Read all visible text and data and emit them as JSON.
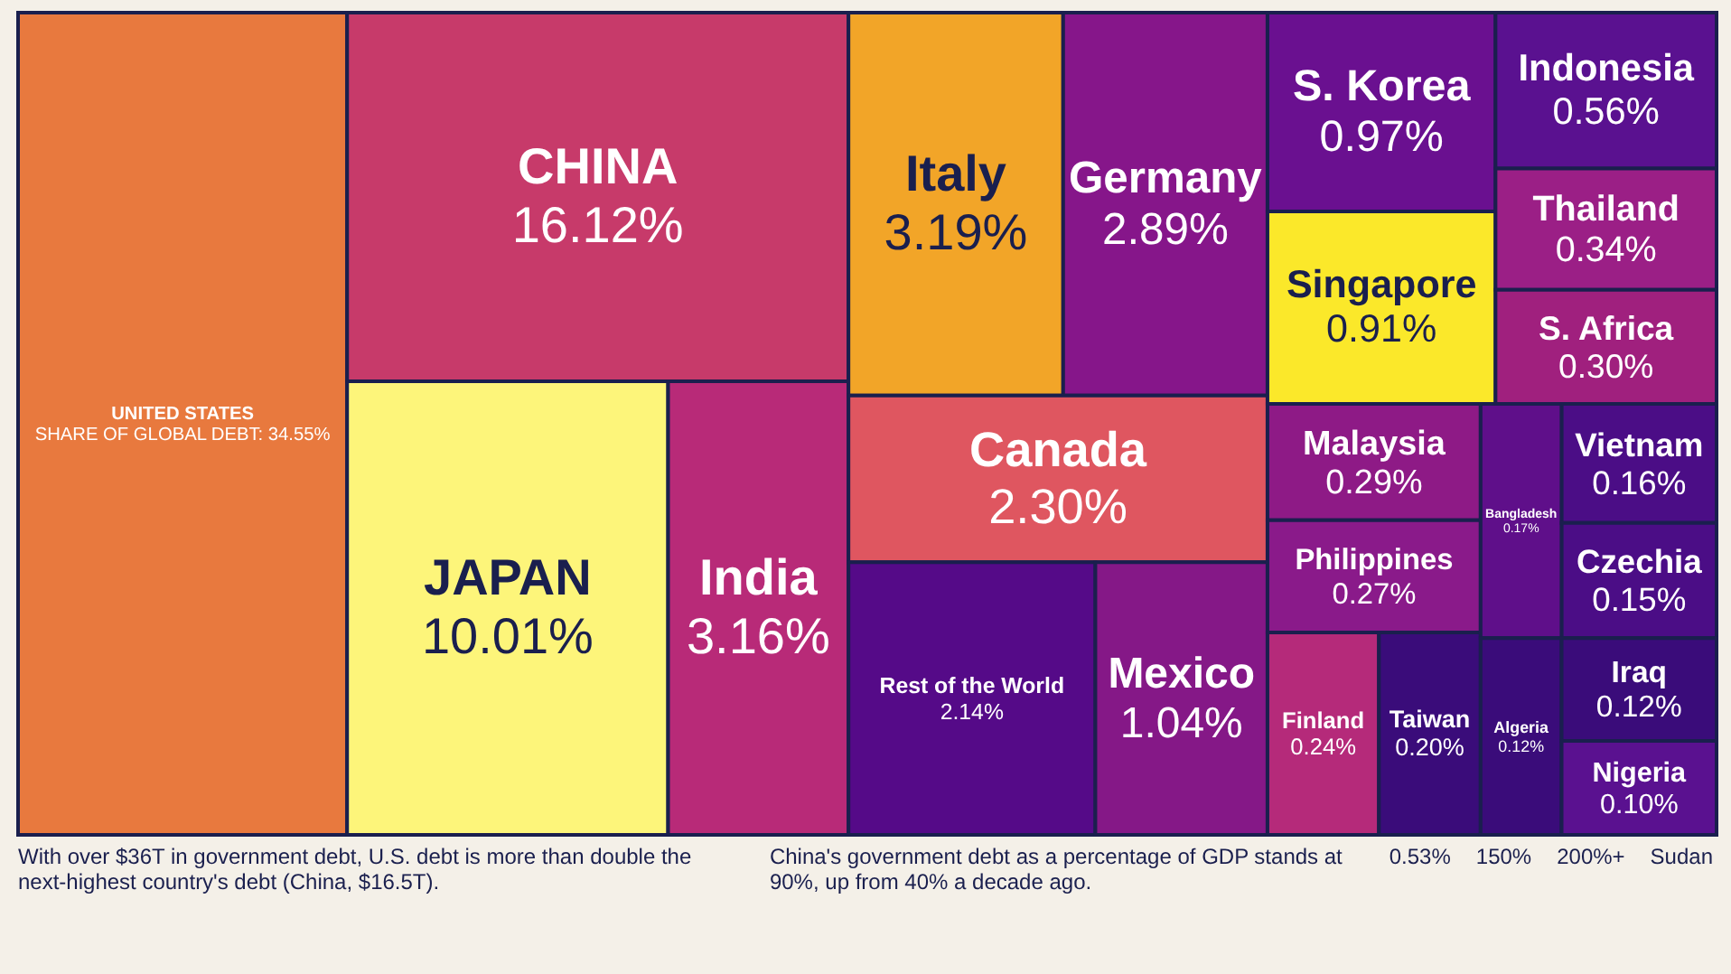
{
  "chart_data": {
    "type": "other",
    "categories": [
      "UNITED STATES",
      "CHINA",
      "JAPAN",
      "India",
      "Italy",
      "Germany",
      "Canada",
      "Rest of the World",
      "Mexico",
      "S. Korea",
      "Singapore",
      "Indonesia",
      "Thailand",
      "S. Africa",
      "Malaysia",
      "Philippines",
      "Finland",
      "Taiwan",
      "Bangladesh",
      "Vietnam",
      "Czechia",
      "Algeria",
      "Iraq",
      "Nigeria"
    ],
    "values": [
      34.55,
      16.12,
      10.01,
      3.16,
      3.19,
      2.89,
      2.3,
      2.14,
      1.04,
      0.97,
      0.91,
      0.56,
      0.34,
      0.3,
      0.29,
      0.27,
      0.24,
      0.2,
      0.17,
      0.16,
      0.15,
      0.12,
      0.12,
      0.1
    ],
    "value_labels": [
      "SHARE OF GLOBAL DEBT: 34.55%",
      "16.12%",
      "10.01%",
      "3.16%",
      "3.19%",
      "2.89%",
      "2.30%",
      "2.14%",
      "1.04%",
      "0.97%",
      "0.91%",
      "0.56%",
      "0.34%",
      "0.30%",
      "0.29%",
      "0.27%",
      "0.24%",
      "0.20%",
      "0.17%",
      "0.16%",
      "0.15%",
      "0.12%",
      "0.12%",
      "0.10%"
    ],
    "colors": [
      "#e8793e",
      "#c73a6a",
      "#fdf57a",
      "#b82a78",
      "#f2a528",
      "#86168a",
      "#df5660",
      "#550a88",
      "#851887",
      "#6a1090",
      "#fbe82a",
      "#5a1190",
      "#9b1f86",
      "#a0207e",
      "#8e1a86",
      "#8a1a8a",
      "#b52a7a",
      "#3a0c7a",
      "#5f0f8a",
      "#4b0d86",
      "#4b0d86",
      "#3a0c7a",
      "#3a0c7a",
      "#5a1190"
    ],
    "annotations": [
      "With over $36T in government debt, U.S. debt is more than double the next-highest country's debt (China, $16.5T).",
      "China's government debt as a percentage of GDP stands at 90%, up from 40% a decade ago.",
      "0.53%",
      "150%",
      "200%+",
      "Sudan"
    ]
  }
}
